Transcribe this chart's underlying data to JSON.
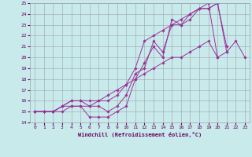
{
  "xlabel": "Windchill (Refroidissement éolien,°C)",
  "bg_color": "#c8eaea",
  "grid_color": "#a0a0b0",
  "line_color": "#993399",
  "xlim": [
    -0.5,
    23.5
  ],
  "ylim": [
    14,
    25
  ],
  "xticks": [
    0,
    1,
    2,
    3,
    4,
    5,
    6,
    7,
    8,
    9,
    10,
    11,
    12,
    13,
    14,
    15,
    16,
    17,
    18,
    19,
    20,
    21,
    22,
    23
  ],
  "yticks": [
    14,
    15,
    16,
    17,
    18,
    19,
    20,
    21,
    22,
    23,
    24,
    25
  ],
  "s1_x": [
    0,
    1,
    2,
    3,
    4,
    5,
    6,
    7,
    8,
    9,
    10,
    11,
    12,
    13,
    14,
    15,
    16,
    17,
    18,
    19,
    20,
    21
  ],
  "s1_y": [
    15.0,
    15.0,
    15.0,
    15.5,
    15.5,
    15.5,
    15.5,
    15.5,
    15.0,
    15.5,
    16.5,
    18.5,
    19.0,
    21.5,
    20.5,
    23.0,
    23.0,
    23.5,
    24.5,
    24.5,
    25.0,
    20.5
  ],
  "s2_x": [
    0,
    1,
    2,
    3,
    4,
    5,
    6,
    7,
    8,
    9,
    10,
    11,
    12,
    13,
    14,
    15,
    16,
    17,
    18,
    19,
    20,
    21
  ],
  "s2_y": [
    15.0,
    15.0,
    15.0,
    15.0,
    15.5,
    15.5,
    14.5,
    14.5,
    14.5,
    15.0,
    15.5,
    18.0,
    19.5,
    21.0,
    20.0,
    23.5,
    23.0,
    24.0,
    24.5,
    24.5,
    25.0,
    21.0
  ],
  "s3_x": [
    0,
    1,
    2,
    3,
    4,
    5,
    6,
    7,
    8,
    9,
    10,
    11,
    12,
    13,
    14,
    15,
    16,
    17,
    18,
    19,
    20
  ],
  "s3_y": [
    15.0,
    15.0,
    15.0,
    15.5,
    16.0,
    16.0,
    15.5,
    16.0,
    16.0,
    16.5,
    17.5,
    19.0,
    21.5,
    22.0,
    22.5,
    23.0,
    23.5,
    24.0,
    24.5,
    25.0,
    20.0
  ],
  "s4_x": [
    0,
    1,
    2,
    3,
    4,
    5,
    6,
    7,
    8,
    9,
    10,
    11,
    12,
    13,
    14,
    15,
    16,
    17,
    18,
    19,
    20,
    21,
    22,
    23
  ],
  "s4_y": [
    15.0,
    15.0,
    15.0,
    15.5,
    16.0,
    16.0,
    16.0,
    16.0,
    16.5,
    17.0,
    17.5,
    18.0,
    18.5,
    19.0,
    19.5,
    20.0,
    20.0,
    20.5,
    21.0,
    21.5,
    20.0,
    20.5,
    21.5,
    20.0
  ]
}
